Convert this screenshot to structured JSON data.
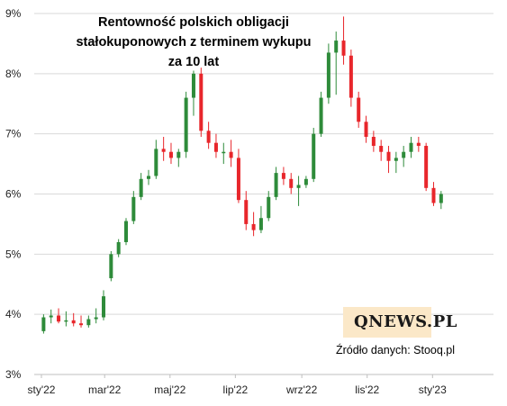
{
  "header": {
    "title_line1": "Rentowność polskich  obligacji",
    "title_line2": "stałokuponowych  z terminem wykupu",
    "title_line3": "za 10 lat"
  },
  "branding": {
    "logo": "QNEWS.PL"
  },
  "source": "Źródło danych: Stooq.pl",
  "colors": {
    "up": "#2e8b3a",
    "down": "#e8262b",
    "grid": "#d9d9d9",
    "axis": "#bfbfbf",
    "logo_bg": "#fbe8c8"
  },
  "chart_data": {
    "type": "candlestick",
    "title": "Rentowność polskich  obligacji stałokuponowych  z terminem wykupu za 10 lat",
    "ylim": [
      3,
      9
    ],
    "y_ticks": [
      3,
      4,
      5,
      6,
      7,
      8,
      9
    ],
    "y_tick_labels": [
      "3%",
      "4%",
      "5%",
      "6%",
      "7%",
      "8%",
      "9%"
    ],
    "x_tick_labels": [
      "sty'22",
      "mar'22",
      "maj'22",
      "lip'22",
      "wrz'22",
      "lis'22",
      "sty'23"
    ],
    "x_tick_dates": [
      "2022-01-01",
      "2022-03-01",
      "2022-05-01",
      "2022-07-01",
      "2022-09-01",
      "2022-11-01",
      "2023-01-01"
    ],
    "x_range": [
      "2022-01-01",
      "2023-01-31"
    ],
    "grid": true,
    "series": [
      {
        "dates": [
          "2022-01-03",
          "2022-01-10",
          "2022-01-17",
          "2022-01-24",
          "2022-01-31",
          "2022-02-07",
          "2022-02-14",
          "2022-02-21",
          "2022-02-28",
          "2022-03-07",
          "2022-03-14",
          "2022-03-21",
          "2022-03-28",
          "2022-04-04",
          "2022-04-11",
          "2022-04-18",
          "2022-04-25",
          "2022-05-02",
          "2022-05-09",
          "2022-05-16",
          "2022-05-23",
          "2022-05-30",
          "2022-06-06",
          "2022-06-13",
          "2022-06-20",
          "2022-06-27",
          "2022-07-04",
          "2022-07-11",
          "2022-07-18",
          "2022-07-25",
          "2022-08-01",
          "2022-08-08",
          "2022-08-15",
          "2022-08-22",
          "2022-08-29",
          "2022-09-05",
          "2022-09-12",
          "2022-09-19",
          "2022-09-26",
          "2022-10-03",
          "2022-10-10",
          "2022-10-17",
          "2022-10-24",
          "2022-10-31",
          "2022-11-07",
          "2022-11-14",
          "2022-11-21",
          "2022-11-28",
          "2022-12-05",
          "2022-12-12",
          "2022-12-19",
          "2022-12-26",
          "2023-01-02",
          "2023-01-09"
        ],
        "open": [
          3.72,
          3.95,
          3.98,
          3.88,
          3.9,
          3.85,
          3.82,
          3.92,
          3.95,
          4.6,
          5.0,
          5.2,
          5.55,
          5.95,
          6.25,
          6.3,
          6.75,
          6.7,
          6.6,
          6.7,
          7.6,
          8.0,
          7.05,
          6.85,
          6.7,
          6.7,
          6.6,
          5.9,
          5.5,
          5.4,
          5.6,
          5.95,
          6.35,
          6.25,
          6.1,
          6.15,
          6.25,
          7.0,
          7.6,
          8.35,
          8.55,
          8.3,
          7.6,
          7.2,
          6.95,
          6.8,
          6.7,
          6.55,
          6.6,
          6.7,
          6.85,
          6.8,
          6.1,
          5.85
        ],
        "high": [
          4.0,
          4.08,
          4.1,
          4.05,
          4.02,
          3.98,
          3.98,
          4.1,
          4.4,
          5.05,
          5.25,
          5.6,
          6.05,
          6.35,
          6.4,
          6.9,
          6.95,
          6.85,
          6.75,
          7.7,
          8.05,
          8.1,
          7.2,
          7.0,
          6.85,
          6.9,
          6.75,
          6.05,
          5.7,
          5.8,
          6.05,
          6.45,
          6.45,
          6.35,
          6.3,
          6.3,
          7.1,
          7.7,
          8.5,
          8.7,
          8.95,
          8.4,
          7.7,
          7.3,
          7.05,
          6.9,
          6.8,
          6.7,
          6.8,
          6.95,
          6.95,
          6.85,
          6.2,
          6.05
        ],
        "low": [
          3.68,
          3.85,
          3.85,
          3.8,
          3.8,
          3.78,
          3.78,
          3.85,
          3.9,
          4.55,
          4.95,
          5.15,
          5.5,
          5.9,
          6.15,
          6.25,
          6.55,
          6.5,
          6.45,
          6.6,
          7.3,
          6.95,
          6.75,
          6.6,
          6.5,
          6.45,
          5.85,
          5.4,
          5.3,
          5.35,
          5.55,
          5.9,
          6.15,
          6.0,
          5.8,
          6.1,
          6.2,
          6.95,
          7.5,
          7.65,
          8.15,
          7.45,
          7.1,
          6.85,
          6.7,
          6.55,
          6.35,
          6.35,
          6.45,
          6.6,
          6.7,
          6.05,
          5.8,
          5.75
        ],
        "close": [
          3.95,
          3.98,
          3.88,
          3.9,
          3.85,
          3.82,
          3.92,
          3.95,
          4.3,
          5.0,
          5.2,
          5.55,
          5.95,
          6.25,
          6.3,
          6.75,
          6.7,
          6.6,
          6.7,
          7.6,
          8.0,
          7.05,
          6.85,
          6.7,
          6.7,
          6.6,
          5.9,
          5.5,
          5.4,
          5.6,
          5.95,
          6.35,
          6.25,
          6.1,
          6.15,
          6.25,
          7.0,
          7.6,
          8.35,
          8.55,
          8.3,
          7.6,
          7.2,
          6.95,
          6.8,
          6.7,
          6.55,
          6.6,
          6.7,
          6.85,
          6.8,
          6.1,
          5.85,
          6.0
        ]
      }
    ]
  }
}
